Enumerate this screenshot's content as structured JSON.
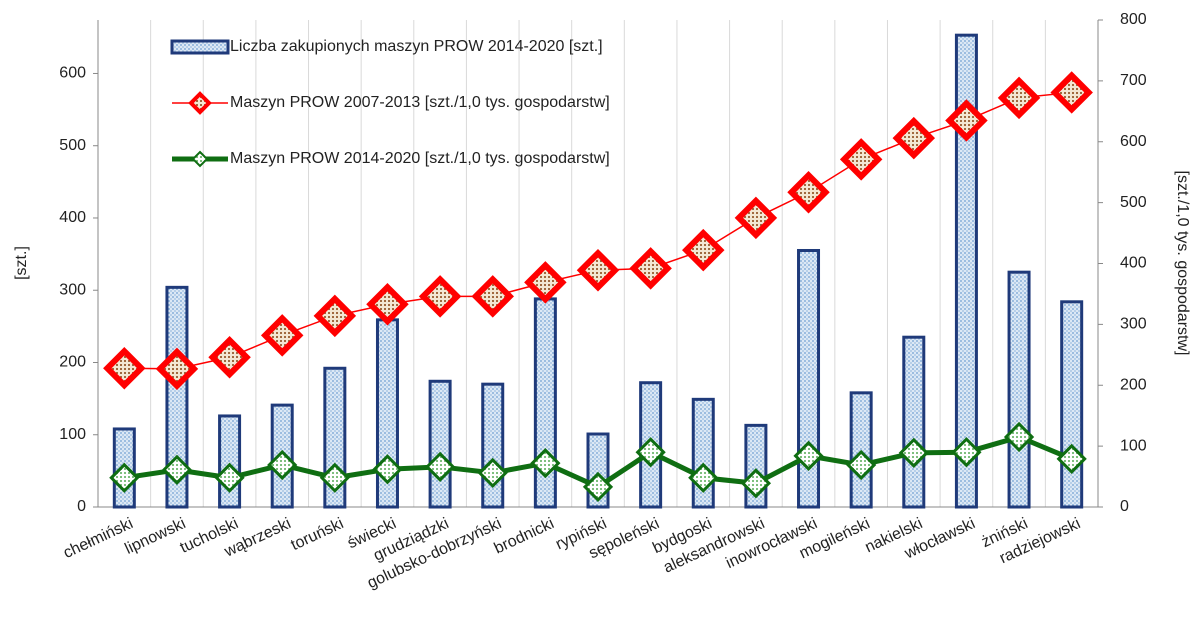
{
  "chart_data": {
    "type": "bar_line",
    "categories": [
      "chełmiński",
      "lipnowski",
      "tucholski",
      "wąbrzeski",
      "toruński",
      "świecki",
      "grudziądzki",
      "golubsko-dobrzyński",
      "brodnicki",
      "rypiński",
      "sępoleński",
      "bydgoski",
      "aleksandrowski",
      "inowrocławski",
      "mogileński",
      "nakielski",
      "włocławski",
      "żniński",
      "radziejowski"
    ],
    "series": [
      {
        "name": "Liczba zakupionych maszyn PROW 2014-2020 [szt.]",
        "color": "#1f3a7a",
        "type": "bar",
        "values": [
          108,
          304,
          126,
          141,
          192,
          259,
          174,
          170,
          288,
          101,
          172,
          149,
          113,
          355,
          158,
          235,
          653,
          325,
          284
        ]
      },
      {
        "name": "Maszyn PROW 2007-2013 [szt./1,0 tys. gospodarstw]",
        "color": "#ff0000",
        "type": "line",
        "axis": "y2",
        "values": [
          228,
          227,
          246,
          282,
          314,
          333,
          346,
          346,
          369,
          389,
          392,
          422,
          475,
          517,
          571,
          606,
          635,
          672,
          681
        ]
      },
      {
        "name": "Maszyn PROW 2014-2020 [szt./1,0 tys. gospodarstw]",
        "color": "#0f6e12",
        "type": "line",
        "axis": "y2",
        "values": [
          48,
          61,
          48,
          69,
          48,
          62,
          66,
          56,
          72,
          33,
          90,
          48,
          39,
          84,
          69,
          89,
          90,
          115,
          79
        ]
      }
    ],
    "ylabel": "[szt.]",
    "y2label": "[szt./1,0 tys. gospodarstw]",
    "ylim": [
      0,
      674
    ],
    "yticks": [
      0,
      100,
      200,
      300,
      400,
      500,
      600
    ],
    "y2lim": [
      0,
      800
    ],
    "y2ticks": [
      0,
      100,
      200,
      300,
      400,
      500,
      600,
      700,
      800
    ],
    "grid": true,
    "legend": "top-left"
  }
}
